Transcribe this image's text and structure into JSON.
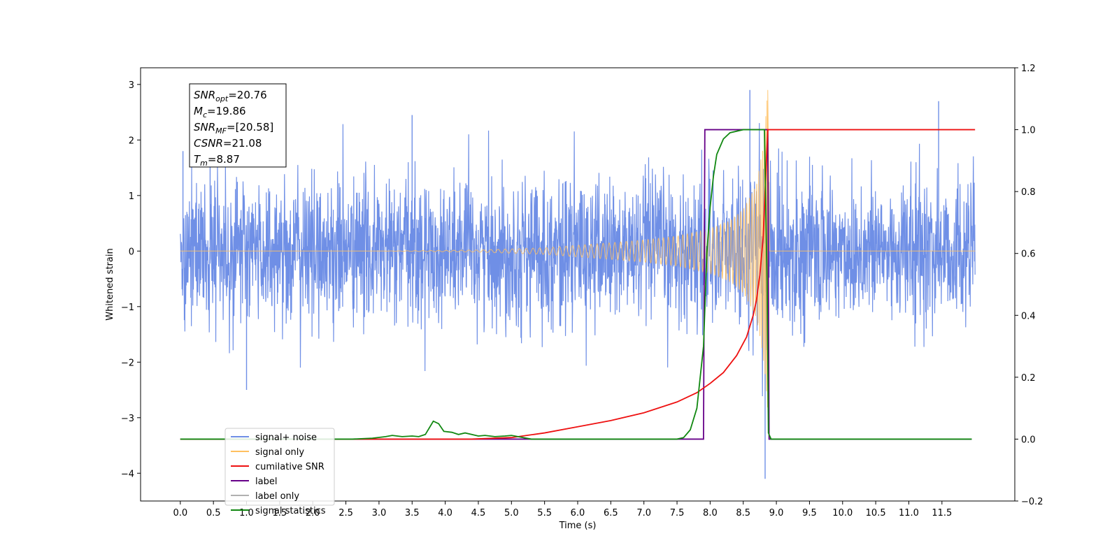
{
  "chart_data": {
    "type": "line",
    "xlabel": "Time (s)",
    "ylabel": "Whitened strain",
    "xlim": [
      -0.6,
      12.6
    ],
    "ylim_left": [
      -4.5,
      3.3
    ],
    "ylim_right": [
      -0.2,
      1.2
    ],
    "x_ticks": [
      0.0,
      0.5,
      1.0,
      1.5,
      2.0,
      2.5,
      3.0,
      3.5,
      4.0,
      4.5,
      5.0,
      5.5,
      6.0,
      6.5,
      7.0,
      7.5,
      8.0,
      8.5,
      9.0,
      9.5,
      10.0,
      10.5,
      11.0,
      11.5
    ],
    "x_tick_labels": [
      "0.0",
      "0.5",
      "1.0",
      "1.5",
      "2.0",
      "2.5",
      "3.0",
      "3.5",
      "4.0",
      "4.5",
      "5.0",
      "5.5",
      "6.0",
      "6.5",
      "7.0",
      "7.5",
      "8.0",
      "8.5",
      "9.0",
      "9.5",
      "10.0",
      "10.5",
      "11.0",
      "11.5"
    ],
    "y_left_ticks": [
      3,
      2,
      1,
      0,
      -1,
      -2,
      -3,
      -4
    ],
    "y_left_tick_labels": [
      "3",
      "2",
      "1",
      "0",
      "−1",
      "−2",
      "−3",
      "−4"
    ],
    "y_right_ticks": [
      1.2,
      1.0,
      0.8,
      0.6,
      0.4,
      0.2,
      0.0,
      -0.2
    ],
    "y_right_tick_labels": [
      "1.2",
      "1.0",
      "0.8",
      "0.6",
      "0.4",
      "0.2",
      "0.0",
      "−0.2"
    ],
    "annotations": [
      {
        "name": "SNR",
        "sub": "opt",
        "value": "=20.76"
      },
      {
        "name": "M",
        "sub": "c",
        "value": "=19.86"
      },
      {
        "name": "SNR",
        "sub": "MF",
        "value": "=[20.58]"
      },
      {
        "name": "CSNR",
        "sub": "",
        "value": "=21.08"
      },
      {
        "name": "T",
        "sub": "m",
        "value": "=8.87"
      }
    ],
    "legend_position": "lower-left",
    "series": [
      {
        "name": "signal+ noise",
        "axis": "left",
        "color": "#6f8fe6",
        "kind": "noisy_strain",
        "x_range": [
          0.0,
          12.0
        ],
        "amplitude_std": 0.65,
        "peak_spikes": [
          [
            0.04,
            1.8
          ],
          [
            0.45,
            1.8
          ],
          [
            1.0,
            -2.5
          ],
          [
            3.5,
            2.45
          ],
          [
            8.6,
            2.9
          ],
          [
            8.83,
            -4.1
          ],
          [
            11.45,
            2.7
          ]
        ]
      },
      {
        "name": "signal only",
        "axis": "left",
        "color": "#ffc060",
        "kind": "chirp",
        "merger_time": 8.87,
        "peak_amplitude": 2.9,
        "points": [
          [
            0.0,
            0.0
          ],
          [
            3.0,
            0.0
          ],
          [
            4.5,
            0.02
          ],
          [
            5.5,
            0.06
          ],
          [
            6.5,
            0.15
          ],
          [
            7.0,
            0.2
          ],
          [
            7.5,
            0.27
          ],
          [
            8.0,
            0.4
          ],
          [
            8.3,
            0.55
          ],
          [
            8.5,
            0.75
          ],
          [
            8.7,
            1.2
          ],
          [
            8.8,
            1.9
          ],
          [
            8.85,
            2.6
          ],
          [
            8.87,
            2.9
          ],
          [
            8.9,
            0.0
          ],
          [
            12.0,
            0.0
          ]
        ]
      },
      {
        "name": "cumilative SNR",
        "axis": "right",
        "color": "#ee1111",
        "points": [
          [
            0.0,
            0.0
          ],
          [
            4.4,
            0.0
          ],
          [
            5.0,
            0.005
          ],
          [
            5.5,
            0.02
          ],
          [
            6.0,
            0.04
          ],
          [
            6.5,
            0.06
          ],
          [
            7.0,
            0.085
          ],
          [
            7.5,
            0.12
          ],
          [
            7.8,
            0.15
          ],
          [
            8.0,
            0.18
          ],
          [
            8.2,
            0.215
          ],
          [
            8.4,
            0.27
          ],
          [
            8.55,
            0.33
          ],
          [
            8.65,
            0.4
          ],
          [
            8.7,
            0.45
          ],
          [
            8.75,
            0.53
          ],
          [
            8.8,
            0.65
          ],
          [
            8.85,
            0.9
          ],
          [
            8.87,
            1.0
          ],
          [
            12.0,
            1.0
          ]
        ]
      },
      {
        "name": "label",
        "axis": "right",
        "color": "#660088",
        "points": [
          [
            0.0,
            0.0
          ],
          [
            7.9,
            0.0
          ],
          [
            7.92,
            1.0
          ],
          [
            8.87,
            1.0
          ],
          [
            8.89,
            0.0
          ],
          [
            11.95,
            0.0
          ]
        ]
      },
      {
        "name": "label only",
        "axis": "right",
        "color": "#b0b0b0",
        "points": []
      },
      {
        "name": "signal statistics",
        "axis": "right",
        "color": "#118811",
        "points": [
          [
            0.0,
            0.0
          ],
          [
            2.6,
            0.0
          ],
          [
            2.9,
            0.003
          ],
          [
            3.1,
            0.008
          ],
          [
            3.2,
            0.012
          ],
          [
            3.35,
            0.008
          ],
          [
            3.5,
            0.01
          ],
          [
            3.6,
            0.008
          ],
          [
            3.7,
            0.015
          ],
          [
            3.82,
            0.058
          ],
          [
            3.9,
            0.05
          ],
          [
            3.98,
            0.025
          ],
          [
            4.1,
            0.022
          ],
          [
            4.2,
            0.015
          ],
          [
            4.3,
            0.02
          ],
          [
            4.4,
            0.015
          ],
          [
            4.5,
            0.01
          ],
          [
            4.6,
            0.012
          ],
          [
            4.75,
            0.008
          ],
          [
            4.9,
            0.01
          ],
          [
            5.0,
            0.012
          ],
          [
            5.1,
            0.008
          ],
          [
            5.3,
            0.0
          ],
          [
            7.5,
            0.0
          ],
          [
            7.6,
            0.005
          ],
          [
            7.7,
            0.03
          ],
          [
            7.8,
            0.1
          ],
          [
            7.9,
            0.3
          ],
          [
            7.95,
            0.6
          ],
          [
            8.0,
            0.75
          ],
          [
            8.05,
            0.85
          ],
          [
            8.1,
            0.92
          ],
          [
            8.2,
            0.97
          ],
          [
            8.3,
            0.99
          ],
          [
            8.5,
            1.0
          ],
          [
            8.82,
            1.0
          ],
          [
            8.86,
            0.5
          ],
          [
            8.88,
            0.02
          ],
          [
            8.92,
            0.0
          ],
          [
            11.95,
            0.0
          ]
        ]
      }
    ]
  }
}
